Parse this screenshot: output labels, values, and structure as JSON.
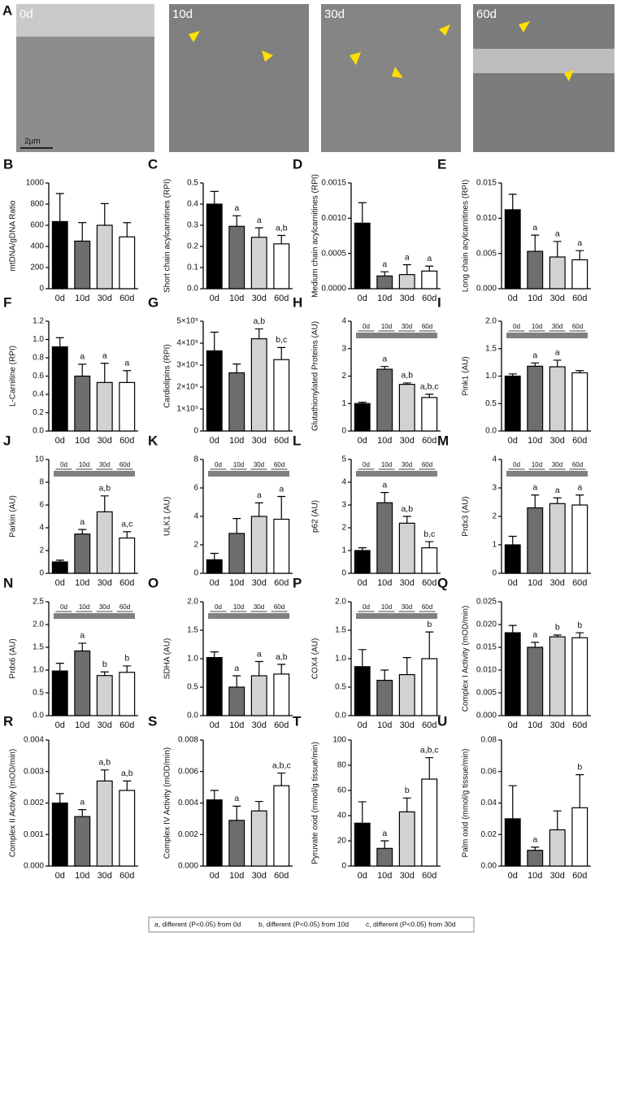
{
  "panel_a": {
    "label": "A",
    "images": [
      "0d",
      "10d",
      "30d",
      "60d"
    ],
    "scale_bar": "2µm"
  },
  "footnote": [
    "a, different (P<0.05) from 0d",
    "b, different (P<0.05) from 10d",
    "c, different (P<0.05) from 30d"
  ],
  "chart_data": [
    {
      "type": "bar",
      "label": "B",
      "ylabel": "mtDNA/gDNA Ratio",
      "categories": [
        "0d",
        "10d",
        "30d",
        "60d"
      ],
      "colors": [
        "#000000",
        "#6e6e6e",
        "#d2d2d2",
        "#ffffff"
      ],
      "values": [
        635,
        450,
        600,
        490
      ],
      "errors": [
        265,
        175,
        205,
        135
      ],
      "annotations": [
        null,
        null,
        null,
        null
      ],
      "ylim": [
        0,
        1000
      ],
      "yticks": [
        0,
        200,
        400,
        600,
        800,
        1000
      ]
    },
    {
      "type": "bar",
      "label": "C",
      "ylabel": "Short chain acylcarnitines (RPI)",
      "categories": [
        "0d",
        "10d",
        "30d",
        "60d"
      ],
      "colors": [
        "#000000",
        "#6e6e6e",
        "#d2d2d2",
        "#ffffff"
      ],
      "values": [
        0.4,
        0.295,
        0.243,
        0.212
      ],
      "errors": [
        0.06,
        0.05,
        0.045,
        0.04
      ],
      "annotations": [
        null,
        "a",
        "a",
        "a,b"
      ],
      "ylim": [
        0,
        0.5
      ],
      "yticks": [
        {
          "value": 0,
          "label": "0.0"
        },
        0.1,
        0.2,
        0.3,
        0.4,
        0.5
      ]
    },
    {
      "type": "bar",
      "label": "D",
      "ylabel": "Medium chain acylcarnitines (RPI)",
      "categories": [
        "0d",
        "10d",
        "30d",
        "60d"
      ],
      "colors": [
        "#000000",
        "#6e6e6e",
        "#d2d2d2",
        "#ffffff"
      ],
      "values": [
        0.00093,
        0.00018,
        0.0002,
        0.00025
      ],
      "errors": [
        0.00029,
        6e-05,
        0.00014,
        7e-05
      ],
      "annotations": [
        null,
        "a",
        "a",
        "a"
      ],
      "ylim": [
        0,
        0.0015
      ],
      "yticks": [
        {
          "value": 0,
          "label": "0.0000"
        },
        0.0005,
        {
          "value": 0.001,
          "label": "0.0010"
        },
        0.0015
      ]
    },
    {
      "type": "bar",
      "label": "E",
      "ylabel": "Long chain acylcarnitines (RPI)",
      "categories": [
        "0d",
        "10d",
        "30d",
        "60d"
      ],
      "colors": [
        "#000000",
        "#6e6e6e",
        "#d2d2d2",
        "#ffffff"
      ],
      "values": [
        0.0112,
        0.0053,
        0.0045,
        0.0041
      ],
      "errors": [
        0.0022,
        0.0023,
        0.0022,
        0.0013
      ],
      "annotations": [
        null,
        "a",
        "a",
        "a"
      ],
      "ylim": [
        0,
        0.015
      ],
      "yticks": [
        {
          "value": 0,
          "label": "0.000"
        },
        0.005,
        {
          "value": 0.01,
          "label": "0.010"
        },
        0.015
      ]
    },
    {
      "type": "bar",
      "label": "F",
      "ylabel": "L-Carnitine (RPI)",
      "categories": [
        "0d",
        "10d",
        "30d",
        "60d"
      ],
      "colors": [
        "#000000",
        "#6e6e6e",
        "#d2d2d2",
        "#ffffff"
      ],
      "values": [
        0.92,
        0.6,
        0.53,
        0.53
      ],
      "errors": [
        0.1,
        0.13,
        0.21,
        0.13
      ],
      "annotations": [
        null,
        "a",
        "a",
        "a"
      ],
      "ylim": [
        0,
        1.2
      ],
      "yticks": [
        {
          "value": 0,
          "label": "0.0"
        },
        0.2,
        0.4,
        0.6,
        0.8,
        {
          "value": 1,
          "label": "1.0"
        },
        1.2
      ]
    },
    {
      "type": "bar",
      "label": "G",
      "ylabel": "Cardiolipins (RPI)",
      "categories": [
        "0d",
        "10d",
        "30d",
        "60d"
      ],
      "colors": [
        "#000000",
        "#6e6e6e",
        "#d2d2d2",
        "#ffffff"
      ],
      "values": [
        365000,
        265000,
        420000,
        325000
      ],
      "errors": [
        85000,
        40000,
        45000,
        55000
      ],
      "annotations": [
        null,
        null,
        "a,b",
        "b,c"
      ],
      "ylim": [
        0,
        500000
      ],
      "yticks": [
        0,
        {
          "value": 100000,
          "label": "1×10⁵"
        },
        {
          "value": 200000,
          "label": "2×10⁵"
        },
        {
          "value": 300000,
          "label": "3×10⁵"
        },
        {
          "value": 400000,
          "label": "4×10⁵"
        },
        {
          "value": 500000,
          "label": "5×10⁵"
        }
      ]
    },
    {
      "type": "bar",
      "label": "H",
      "ylabel": "Glutathionylated Proteins (AU)",
      "categories": [
        "0d",
        "10d",
        "30d",
        "60d"
      ],
      "colors": [
        "#000000",
        "#6e6e6e",
        "#d2d2d2",
        "#ffffff"
      ],
      "values": [
        1.0,
        2.25,
        1.7,
        1.22
      ],
      "errors": [
        0.05,
        0.1,
        0.05,
        0.12
      ],
      "annotations": [
        null,
        "a",
        "a,b",
        "a,b,c"
      ],
      "blot_labels": [
        "0d",
        "10d",
        "30d",
        "60d"
      ],
      "ylim": [
        0,
        4
      ],
      "yticks": [
        0,
        1,
        2,
        3,
        4
      ]
    },
    {
      "type": "bar",
      "label": "I",
      "ylabel": "Pink1 (AU)",
      "categories": [
        "0d",
        "10d",
        "30d",
        "60d"
      ],
      "colors": [
        "#000000",
        "#6e6e6e",
        "#d2d2d2",
        "#ffffff"
      ],
      "values": [
        1.0,
        1.18,
        1.17,
        1.06
      ],
      "errors": [
        0.04,
        0.06,
        0.12,
        0.04
      ],
      "annotations": [
        null,
        "a",
        "a",
        null
      ],
      "blot_labels": [
        "0d",
        "10d",
        "30d",
        "60d"
      ],
      "ylim": [
        0,
        2
      ],
      "yticks": [
        {
          "value": 0,
          "label": "0.0"
        },
        0.5,
        {
          "value": 1,
          "label": "1.0"
        },
        1.5,
        {
          "value": 2,
          "label": "2.0"
        }
      ]
    },
    {
      "type": "bar",
      "label": "J",
      "ylabel": "Parkin (AU)",
      "categories": [
        "0d",
        "10d",
        "30d",
        "60d"
      ],
      "colors": [
        "#000000",
        "#6e6e6e",
        "#d2d2d2",
        "#ffffff"
      ],
      "values": [
        1.0,
        3.45,
        5.4,
        3.1
      ],
      "errors": [
        0.15,
        0.4,
        1.4,
        0.55
      ],
      "annotations": [
        null,
        "a",
        "a,b",
        "a,c"
      ],
      "blot_labels": [
        "0d",
        "10d",
        "30d",
        "60d"
      ],
      "ylim": [
        0,
        10
      ],
      "yticks": [
        0,
        2,
        4,
        6,
        8,
        10
      ]
    },
    {
      "type": "bar",
      "label": "K",
      "ylabel": "ULK1 (AU)",
      "categories": [
        "0d",
        "10d",
        "30d",
        "60d"
      ],
      "colors": [
        "#000000",
        "#6e6e6e",
        "#d2d2d2",
        "#ffffff"
      ],
      "values": [
        0.95,
        2.8,
        4.0,
        3.8
      ],
      "errors": [
        0.45,
        1.05,
        0.95,
        1.6
      ],
      "annotations": [
        null,
        null,
        "a",
        "a"
      ],
      "blot_labels": [
        "0d",
        "10d",
        "30d",
        "60d"
      ],
      "ylim": [
        0,
        8
      ],
      "yticks": [
        0,
        2,
        4,
        6,
        8
      ]
    },
    {
      "type": "bar",
      "label": "L",
      "ylabel": "p62 (AU)",
      "categories": [
        "0d",
        "10d",
        "30d",
        "60d"
      ],
      "colors": [
        "#000000",
        "#6e6e6e",
        "#d2d2d2",
        "#ffffff"
      ],
      "values": [
        1.0,
        3.1,
        2.2,
        1.12
      ],
      "errors": [
        0.12,
        0.45,
        0.3,
        0.27
      ],
      "annotations": [
        null,
        "a",
        "a,b",
        "b,c"
      ],
      "blot_labels": [
        "0d",
        "10d",
        "30d",
        "60d"
      ],
      "ylim": [
        0,
        5
      ],
      "yticks": [
        0,
        1,
        2,
        3,
        4,
        5
      ]
    },
    {
      "type": "bar",
      "label": "M",
      "ylabel": "Prdx3 (AU)",
      "categories": [
        "0d",
        "10d",
        "30d",
        "60d"
      ],
      "colors": [
        "#000000",
        "#6e6e6e",
        "#d2d2d2",
        "#ffffff"
      ],
      "values": [
        1.0,
        2.3,
        2.45,
        2.4
      ],
      "errors": [
        0.3,
        0.45,
        0.2,
        0.35
      ],
      "annotations": [
        null,
        "a",
        "a",
        "a"
      ],
      "blot_labels": [
        "0d",
        "10d",
        "30d",
        "60d"
      ],
      "ylim": [
        0,
        4
      ],
      "yticks": [
        0,
        1,
        2,
        3,
        4
      ]
    },
    {
      "type": "bar",
      "label": "N",
      "ylabel": "Prdx6 (AU)",
      "categories": [
        "0d",
        "10d",
        "30d",
        "60d"
      ],
      "colors": [
        "#000000",
        "#6e6e6e",
        "#d2d2d2",
        "#ffffff"
      ],
      "values": [
        0.98,
        1.42,
        0.88,
        0.95
      ],
      "errors": [
        0.17,
        0.17,
        0.08,
        0.14
      ],
      "annotations": [
        null,
        "a",
        "b",
        "b"
      ],
      "blot_labels": [
        "0d",
        "10d",
        "30d",
        "60d"
      ],
      "ylim": [
        0,
        2.5
      ],
      "yticks": [
        {
          "value": 0,
          "label": "0.0"
        },
        0.5,
        {
          "value": 1,
          "label": "1.0"
        },
        1.5,
        {
          "value": 2,
          "label": "2.0"
        },
        2.5
      ]
    },
    {
      "type": "bar",
      "label": "O",
      "ylabel": "SDHA (AU)",
      "categories": [
        "0d",
        "10d",
        "30d",
        "60d"
      ],
      "colors": [
        "#000000",
        "#6e6e6e",
        "#d2d2d2",
        "#ffffff"
      ],
      "values": [
        1.02,
        0.5,
        0.7,
        0.73
      ],
      "errors": [
        0.1,
        0.2,
        0.25,
        0.17
      ],
      "annotations": [
        null,
        "a",
        "a",
        "a,b"
      ],
      "blot_labels": [
        "0d",
        "10d",
        "30d",
        "60d"
      ],
      "ylim": [
        0,
        2
      ],
      "yticks": [
        {
          "value": 0,
          "label": "0.0"
        },
        0.5,
        {
          "value": 1,
          "label": "1.0"
        },
        1.5,
        {
          "value": 2,
          "label": "2.0"
        }
      ]
    },
    {
      "type": "bar",
      "label": "P",
      "ylabel": "COX4 (AU)",
      "categories": [
        "0d",
        "10d",
        "30d",
        "60d"
      ],
      "colors": [
        "#000000",
        "#6e6e6e",
        "#d2d2d2",
        "#ffffff"
      ],
      "values": [
        0.86,
        0.62,
        0.72,
        1.0
      ],
      "errors": [
        0.3,
        0.18,
        0.3,
        0.47
      ],
      "annotations": [
        null,
        null,
        null,
        "b"
      ],
      "blot_labels": [
        "0d",
        "10d",
        "30d",
        "60d"
      ],
      "ylim": [
        0,
        2
      ],
      "yticks": [
        {
          "value": 0,
          "label": "0.0"
        },
        0.5,
        {
          "value": 1,
          "label": "1.0"
        },
        1.5,
        {
          "value": 2,
          "label": "2.0"
        }
      ]
    },
    {
      "type": "bar",
      "label": "Q",
      "ylabel": "Complex I Activity (mOD/min)",
      "categories": [
        "0d",
        "10d",
        "30d",
        "60d"
      ],
      "colors": [
        "#000000",
        "#6e6e6e",
        "#d2d2d2",
        "#ffffff"
      ],
      "values": [
        0.0182,
        0.015,
        0.0173,
        0.0171
      ],
      "errors": [
        0.0016,
        0.0011,
        0.0004,
        0.0011
      ],
      "annotations": [
        null,
        "a",
        "b",
        "b"
      ],
      "ylim": [
        0,
        0.025
      ],
      "yticks": [
        {
          "value": 0,
          "label": "0.000"
        },
        0.005,
        {
          "value": 0.01,
          "label": "0.010"
        },
        0.015,
        {
          "value": 0.02,
          "label": "0.020"
        },
        0.025
      ]
    },
    {
      "type": "bar",
      "label": "R",
      "ylabel": "Complex II Activity (mOD/min)",
      "categories": [
        "0d",
        "10d",
        "30d",
        "60d"
      ],
      "colors": [
        "#000000",
        "#6e6e6e",
        "#d2d2d2",
        "#ffffff"
      ],
      "values": [
        0.002,
        0.00157,
        0.0027,
        0.0024
      ],
      "errors": [
        0.0003,
        0.00022,
        0.00035,
        0.0003
      ],
      "annotations": [
        null,
        "a",
        "a,b",
        "a,b"
      ],
      "ylim": [
        0,
        0.004
      ],
      "yticks": [
        {
          "value": 0,
          "label": "0.000"
        },
        0.001,
        0.002,
        0.003,
        0.004
      ]
    },
    {
      "type": "bar",
      "label": "S",
      "ylabel": "Complex IV Activity (mOD/min)",
      "categories": [
        "0d",
        "10d",
        "30d",
        "60d"
      ],
      "colors": [
        "#000000",
        "#6e6e6e",
        "#d2d2d2",
        "#ffffff"
      ],
      "values": [
        0.0042,
        0.0029,
        0.0035,
        0.0051
      ],
      "errors": [
        0.0006,
        0.0009,
        0.0006,
        0.0008
      ],
      "annotations": [
        null,
        "a",
        null,
        "a,b,c"
      ],
      "ylim": [
        0,
        0.008
      ],
      "yticks": [
        {
          "value": 0,
          "label": "0.000"
        },
        0.002,
        0.004,
        0.006,
        0.008
      ]
    },
    {
      "type": "bar",
      "label": "T",
      "ylabel": "Pyruvate oxid (mmol/g tissue/min)",
      "categories": [
        "0d",
        "10d",
        "30d",
        "60d"
      ],
      "colors": [
        "#000000",
        "#6e6e6e",
        "#d2d2d2",
        "#ffffff"
      ],
      "values": [
        34,
        14,
        43,
        69
      ],
      "errors": [
        17,
        6,
        11,
        17
      ],
      "annotations": [
        null,
        "a",
        "b",
        "a,b,c"
      ],
      "ylim": [
        0,
        100
      ],
      "yticks": [
        0,
        20,
        40,
        60,
        80,
        100
      ]
    },
    {
      "type": "bar",
      "label": "U",
      "ylabel": "Palm oxid (mmol/g tissue/min)",
      "categories": [
        "0d",
        "10d",
        "30d",
        "60d"
      ],
      "colors": [
        "#000000",
        "#6e6e6e",
        "#d2d2d2",
        "#ffffff"
      ],
      "values": [
        0.03,
        0.01,
        0.023,
        0.037
      ],
      "errors": [
        0.021,
        0.002,
        0.012,
        0.021
      ],
      "annotations": [
        null,
        "a",
        null,
        "b"
      ],
      "ylim": [
        0,
        0.08
      ],
      "yticks": [
        {
          "value": 0,
          "label": "0.00"
        },
        0.02,
        0.04,
        0.06,
        0.08
      ]
    }
  ]
}
